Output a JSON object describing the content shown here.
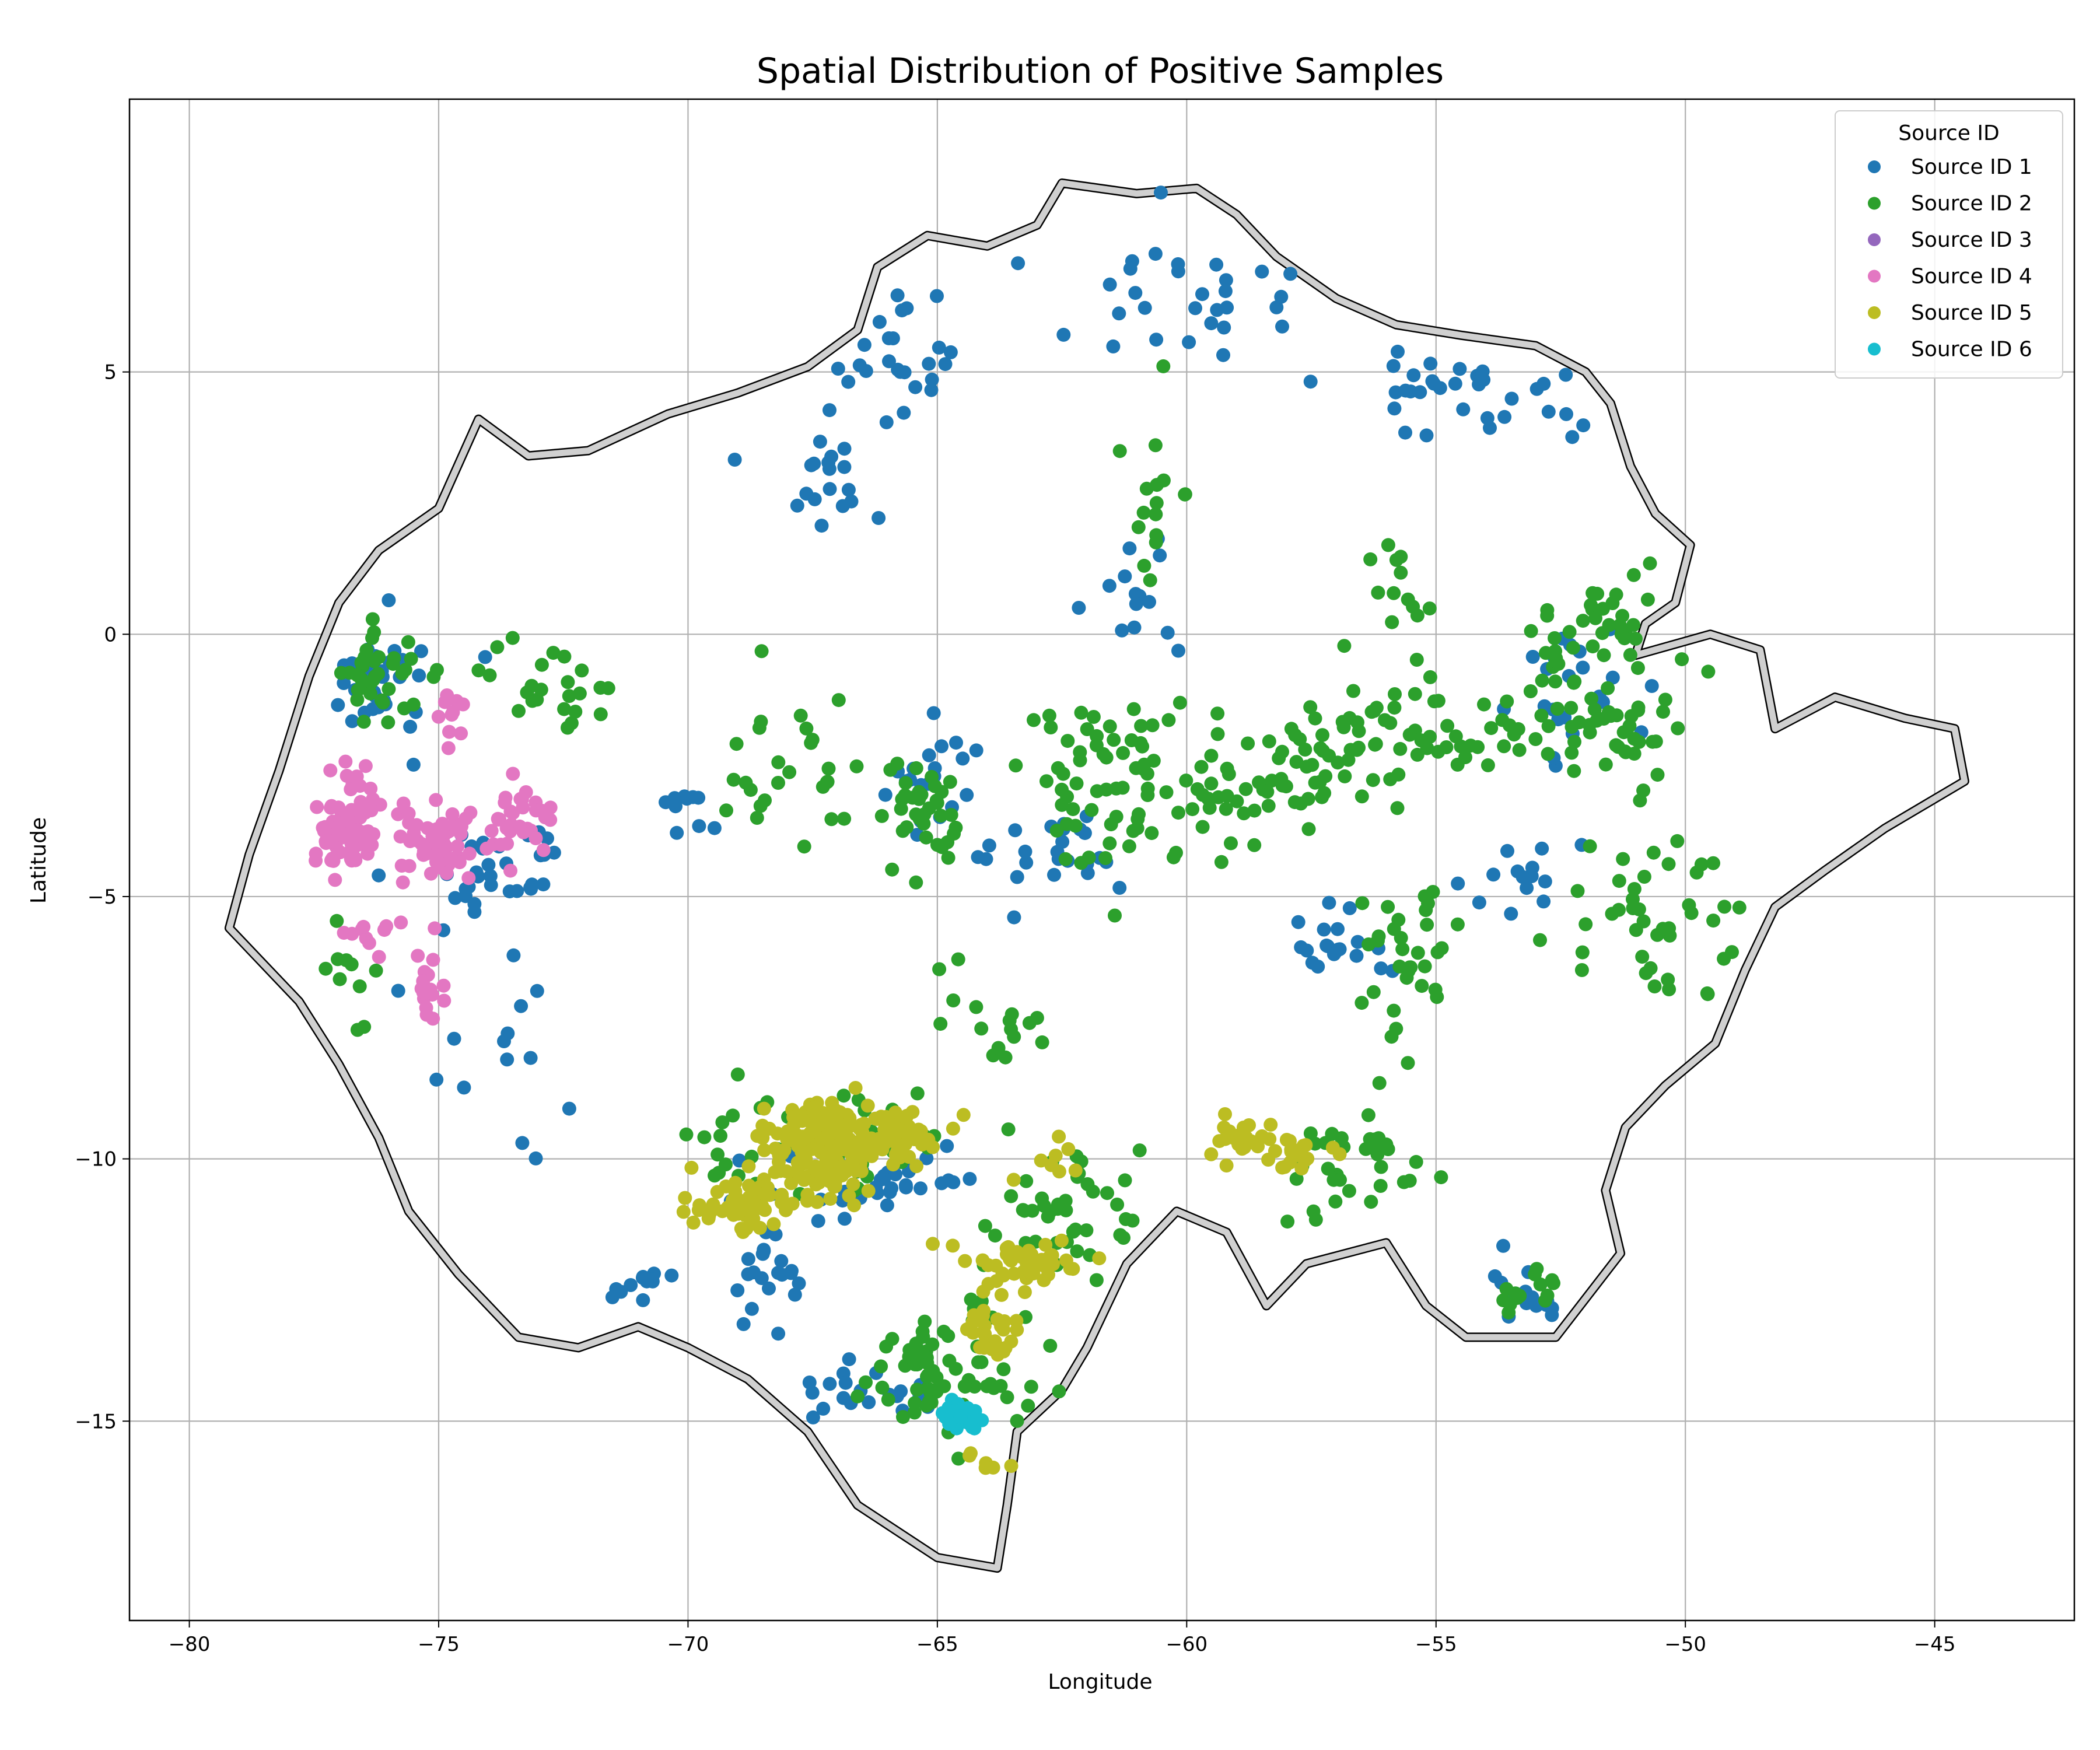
{
  "chart_data": {
    "type": "scatter",
    "title": "Spatial Distribution of Positive Samples",
    "xlabel": "Longitude",
    "ylabel": "Latitude",
    "xlim": [
      -81.2,
      -42.2
    ],
    "ylim": [
      -18.8,
      10.2
    ],
    "xticks": [
      -80,
      -75,
      -70,
      -65,
      -60,
      -55,
      -50,
      -45
    ],
    "yticks": [
      5,
      0,
      -5,
      -10,
      -15
    ],
    "xtick_labels": [
      "−80",
      "−75",
      "−70",
      "−65",
      "−60",
      "−55",
      "−50",
      "−45"
    ],
    "ytick_labels": [
      "5",
      "0",
      "−5",
      "−10",
      "−15"
    ],
    "grid": true,
    "legend": {
      "title": "Source ID",
      "placement": "top-right",
      "entries": [
        "Source ID 1",
        "Source ID 2",
        "Source ID 3",
        "Source ID 4",
        "Source ID 5",
        "Source ID 6"
      ]
    },
    "boundary": [
      [
        -62.5,
        8.6
      ],
      [
        -61.0,
        8.4
      ],
      [
        -59.8,
        8.5
      ],
      [
        -59.0,
        8.0
      ],
      [
        -58.2,
        7.2
      ],
      [
        -57.0,
        6.4
      ],
      [
        -55.8,
        5.9
      ],
      [
        -54.5,
        5.7
      ],
      [
        -53.0,
        5.5
      ],
      [
        -52.0,
        5.0
      ],
      [
        -51.5,
        4.4
      ],
      [
        -51.1,
        3.2
      ],
      [
        -50.6,
        2.3
      ],
      [
        -49.9,
        1.7
      ],
      [
        -50.2,
        0.6
      ],
      [
        -50.8,
        0.2
      ],
      [
        -51.0,
        -0.4
      ],
      [
        -49.5,
        0.0
      ],
      [
        -48.5,
        -0.3
      ],
      [
        -48.2,
        -1.8
      ],
      [
        -47.0,
        -1.2
      ],
      [
        -45.6,
        -1.6
      ],
      [
        -44.6,
        -1.8
      ],
      [
        -44.4,
        -2.8
      ],
      [
        -46.0,
        -3.7
      ],
      [
        -47.2,
        -4.5
      ],
      [
        -48.2,
        -5.2
      ],
      [
        -48.8,
        -6.4
      ],
      [
        -49.4,
        -7.8
      ],
      [
        -50.4,
        -8.6
      ],
      [
        -51.2,
        -9.4
      ],
      [
        -51.6,
        -10.6
      ],
      [
        -51.3,
        -11.8
      ],
      [
        -52.6,
        -13.4
      ],
      [
        -54.4,
        -13.4
      ],
      [
        -55.2,
        -12.8
      ],
      [
        -56.0,
        -11.6
      ],
      [
        -57.6,
        -12.0
      ],
      [
        -58.4,
        -12.8
      ],
      [
        -59.2,
        -11.4
      ],
      [
        -60.2,
        -11.0
      ],
      [
        -61.2,
        -12.0
      ],
      [
        -62.0,
        -13.6
      ],
      [
        -62.5,
        -14.4
      ],
      [
        -63.4,
        -15.2
      ],
      [
        -63.6,
        -16.6
      ],
      [
        -63.8,
        -17.8
      ],
      [
        -65.0,
        -17.6
      ],
      [
        -66.6,
        -16.6
      ],
      [
        -67.6,
        -15.2
      ],
      [
        -68.8,
        -14.2
      ],
      [
        -70.0,
        -13.6
      ],
      [
        -71.0,
        -13.2
      ],
      [
        -72.2,
        -13.6
      ],
      [
        -73.4,
        -13.4
      ],
      [
        -74.6,
        -12.2
      ],
      [
        -75.6,
        -11.0
      ],
      [
        -76.2,
        -9.6
      ],
      [
        -77.0,
        -8.2
      ],
      [
        -77.8,
        -7.0
      ],
      [
        -78.6,
        -6.2
      ],
      [
        -79.2,
        -5.6
      ],
      [
        -78.8,
        -4.2
      ],
      [
        -78.2,
        -2.6
      ],
      [
        -77.6,
        -0.8
      ],
      [
        -77.0,
        0.6
      ],
      [
        -76.2,
        1.6
      ],
      [
        -75.0,
        2.4
      ],
      [
        -74.2,
        4.1
      ],
      [
        -73.2,
        3.4
      ],
      [
        -72.0,
        3.5
      ],
      [
        -70.4,
        4.2
      ],
      [
        -69.0,
        4.6
      ],
      [
        -67.6,
        5.1
      ],
      [
        -66.6,
        5.8
      ],
      [
        -66.2,
        7.0
      ],
      [
        -65.2,
        7.6
      ],
      [
        -64.0,
        7.4
      ],
      [
        -63.0,
        7.8
      ],
      [
        -62.5,
        8.6
      ]
    ],
    "series": [
      {
        "name": "Source ID 1",
        "color": "#1f77b4",
        "clusters": [
          {
            "center": [
              -66.0,
              5.5
            ],
            "spread": [
              1.6,
              1.1
            ],
            "count": 24
          },
          {
            "center": [
              -60.5,
              6.6
            ],
            "spread": [
              2.2,
              1.2
            ],
            "count": 30
          },
          {
            "center": [
              -54.0,
              4.6
            ],
            "spread": [
              2.5,
              1.0
            ],
            "count": 34
          },
          {
            "center": [
              -67.5,
              3.2
            ],
            "spread": [
              1.2,
              0.9
            ],
            "count": 20
          },
          {
            "center": [
              -61.0,
              0.6
            ],
            "spread": [
              0.8,
              1.3
            ],
            "count": 14
          },
          {
            "center": [
              -76.0,
              -0.9
            ],
            "spread": [
              1.0,
              1.0
            ],
            "count": 30
          },
          {
            "center": [
              -74.0,
              -4.4
            ],
            "spread": [
              1.3,
              0.8
            ],
            "count": 34
          },
          {
            "center": [
              -70.0,
              -3.2
            ],
            "spread": [
              0.5,
              0.8
            ],
            "count": 10
          },
          {
            "center": [
              -65.0,
              -2.8
            ],
            "spread": [
              0.9,
              0.8
            ],
            "count": 20
          },
          {
            "center": [
              -62.4,
              -4.3
            ],
            "spread": [
              1.2,
              0.8
            ],
            "count": 24
          },
          {
            "center": [
              -57.0,
              -5.8
            ],
            "spread": [
              0.9,
              0.6
            ],
            "count": 20
          },
          {
            "center": [
              -52.2,
              -1.2
            ],
            "spread": [
              1.0,
              1.1
            ],
            "count": 22
          },
          {
            "center": [
              -53.2,
              -4.6
            ],
            "spread": [
              0.9,
              0.9
            ],
            "count": 14
          },
          {
            "center": [
              -66.2,
              -10.4
            ],
            "spread": [
              1.9,
              0.8
            ],
            "count": 40
          },
          {
            "center": [
              -68.5,
              -12.3
            ],
            "spread": [
              0.9,
              0.8
            ],
            "count": 22
          },
          {
            "center": [
              -71.0,
              -12.3
            ],
            "spread": [
              0.6,
              0.4
            ],
            "count": 12
          },
          {
            "center": [
              -53.2,
              -12.5
            ],
            "spread": [
              0.7,
              0.5
            ],
            "count": 16
          },
          {
            "center": [
              -66.0,
              -14.4
            ],
            "spread": [
              1.6,
              0.5
            ],
            "count": 20
          },
          {
            "center": [
              -73.5,
              -8.5
            ],
            "spread": [
              1.5,
              1.8
            ],
            "count": 14
          }
        ]
      },
      {
        "name": "Source ID 2",
        "color": "#2ca02c",
        "clusters": [
          {
            "center": [
              -76.3,
              -0.7
            ],
            "spread": [
              1.2,
              0.9
            ],
            "count": 36
          },
          {
            "center": [
              -72.5,
              -1.0
            ],
            "spread": [
              1.2,
              0.7
            ],
            "count": 24
          },
          {
            "center": [
              -68.0,
              -2.5
            ],
            "spread": [
              1.3,
              1.2
            ],
            "count": 28
          },
          {
            "center": [
              -65.3,
              -3.5
            ],
            "spread": [
              0.9,
              1.0
            ],
            "count": 36
          },
          {
            "center": [
              -61.2,
              -2.8
            ],
            "spread": [
              2.0,
              1.3
            ],
            "count": 80
          },
          {
            "center": [
              -58.0,
              -2.6
            ],
            "spread": [
              1.6,
              1.0
            ],
            "count": 50
          },
          {
            "center": [
              -55.0,
              -1.9
            ],
            "spread": [
              1.6,
              0.8
            ],
            "count": 50
          },
          {
            "center": [
              -51.7,
              -1.4
            ],
            "spread": [
              1.6,
              1.1
            ],
            "count": 54
          },
          {
            "center": [
              -50.7,
              -5.3
            ],
            "spread": [
              1.6,
              1.5
            ],
            "count": 44
          },
          {
            "center": [
              -55.5,
              -6.2
            ],
            "spread": [
              1.1,
              1.4
            ],
            "count": 34
          },
          {
            "center": [
              -60.6,
              2.4
            ],
            "spread": [
              0.6,
              1.6
            ],
            "count": 16
          },
          {
            "center": [
              -66.6,
              -9.6
            ],
            "spread": [
              1.8,
              0.9
            ],
            "count": 34
          },
          {
            "center": [
              -62.5,
              -11.2
            ],
            "spread": [
              1.4,
              1.2
            ],
            "count": 44
          },
          {
            "center": [
              -64.9,
              -14.1
            ],
            "spread": [
              1.4,
              1.0
            ],
            "count": 70
          },
          {
            "center": [
              -56.4,
              -10.1
            ],
            "spread": [
              1.2,
              0.8
            ],
            "count": 34
          },
          {
            "center": [
              -76.8,
              -6.4
            ],
            "spread": [
              0.5,
              0.7
            ],
            "count": 10
          },
          {
            "center": [
              -69.1,
              -9.6
            ],
            "spread": [
              0.7,
              0.9
            ],
            "count": 12
          },
          {
            "center": [
              -51.5,
              0.2
            ],
            "spread": [
              1.2,
              0.9
            ],
            "count": 30
          },
          {
            "center": [
              -53.2,
              -12.5
            ],
            "spread": [
              0.7,
              0.5
            ],
            "count": 14
          },
          {
            "center": [
              -63.9,
              -7.3
            ],
            "spread": [
              0.8,
              0.9
            ],
            "count": 16
          },
          {
            "center": [
              -55.8,
              0.8
            ],
            "spread": [
              0.7,
              1.0
            ],
            "count": 14
          }
        ]
      },
      {
        "name": "Source ID 3",
        "color": "#9467bd",
        "clusters": []
      },
      {
        "name": "Source ID 4",
        "color": "#e377c2",
        "clusters": [
          {
            "center": [
              -76.8,
              -3.6
            ],
            "spread": [
              0.55,
              0.75
            ],
            "count": 80
          },
          {
            "center": [
              -75.0,
              -4.0
            ],
            "spread": [
              0.7,
              0.6
            ],
            "count": 60
          },
          {
            "center": [
              -73.4,
              -3.6
            ],
            "spread": [
              0.55,
              0.5
            ],
            "count": 32
          },
          {
            "center": [
              -75.2,
              -6.8
            ],
            "spread": [
              0.3,
              0.6
            ],
            "count": 18
          },
          {
            "center": [
              -74.8,
              -1.7
            ],
            "spread": [
              0.4,
              0.7
            ],
            "count": 10
          },
          {
            "center": [
              -76.4,
              -5.6
            ],
            "spread": [
              0.6,
              0.3
            ],
            "count": 10
          }
        ]
      },
      {
        "name": "Source ID 5",
        "color": "#bcbd22",
        "clusters": [
          {
            "center": [
              -67.2,
              -9.8
            ],
            "spread": [
              1.1,
              0.7
            ],
            "count": 180
          },
          {
            "center": [
              -68.8,
              -10.9
            ],
            "spread": [
              0.8,
              0.4
            ],
            "count": 50
          },
          {
            "center": [
              -65.8,
              -9.5
            ],
            "spread": [
              0.7,
              0.4
            ],
            "count": 40
          },
          {
            "center": [
              -63.3,
              -12.0
            ],
            "spread": [
              1.1,
              0.4
            ],
            "count": 45
          },
          {
            "center": [
              -63.9,
              -13.3
            ],
            "spread": [
              0.5,
              0.5
            ],
            "count": 28
          },
          {
            "center": [
              -59.1,
              -9.6
            ],
            "spread": [
              0.5,
              0.4
            ],
            "count": 20
          },
          {
            "center": [
              -57.8,
              -9.9
            ],
            "spread": [
              0.7,
              0.5
            ],
            "count": 24
          },
          {
            "center": [
              -62.7,
              -10.1
            ],
            "spread": [
              0.4,
              0.5
            ],
            "count": 8
          },
          {
            "center": [
              -64.0,
              -15.7
            ],
            "spread": [
              0.5,
              0.3
            ],
            "count": 6
          }
        ]
      },
      {
        "name": "Source ID 6",
        "color": "#17becf",
        "clusters": [
          {
            "center": [
              -64.6,
              -14.9
            ],
            "spread": [
              0.35,
              0.25
            ],
            "count": 40
          }
        ]
      }
    ]
  }
}
